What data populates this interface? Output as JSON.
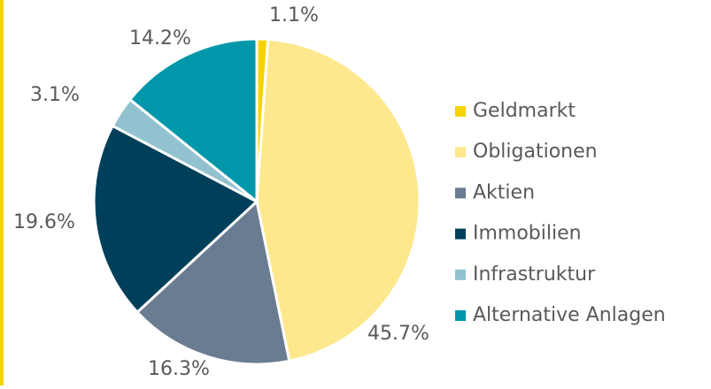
{
  "chart_data": {
    "type": "pie",
    "categories": [
      "Geldmarkt",
      "Obligationen",
      "Aktien",
      "Immobilien",
      "Infrastruktur",
      "Alternative Anlagen"
    ],
    "values": [
      1.1,
      45.7,
      16.3,
      19.6,
      3.1,
      14.2
    ],
    "value_labels": [
      "1.1%",
      "45.7%",
      "16.3%",
      "19.6%",
      "3.1%",
      "14.2%"
    ],
    "colors": [
      "#f5d300",
      "#fde88e",
      "#6a7c91",
      "#003f5a",
      "#92c2d0",
      "#0097aa"
    ],
    "legend": "right"
  }
}
